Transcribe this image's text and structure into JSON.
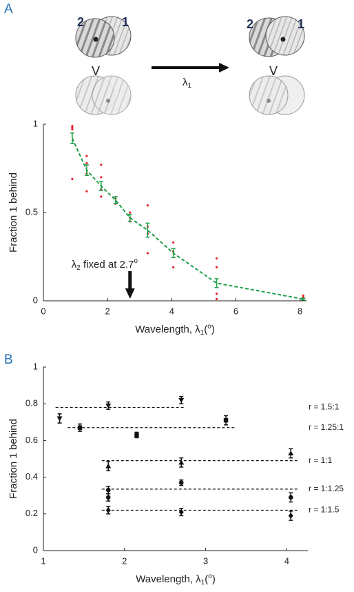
{
  "panels": [
    "A",
    "B"
  ],
  "illustration": {
    "labels": [
      "2",
      "1"
    ],
    "comparator": "V",
    "arrow_label": [
      "λ",
      "1"
    ]
  },
  "chart_data": [
    {
      "type": "line",
      "y_label": "Fraction 1 behind",
      "x_label": [
        "Wavelength, λ",
        "1",
        "(",
        "o",
        ")"
      ],
      "xlim": [
        0,
        8.2
      ],
      "ylim": [
        0,
        1
      ],
      "xticks": [
        0,
        2,
        4,
        6,
        8
      ],
      "yticks": [
        0,
        0.5,
        1
      ],
      "series": [
        {
          "color": "#e8202a",
          "style": "points",
          "x": [
            0.9,
            0.9,
            0.9,
            0.9,
            1.35,
            1.35,
            1.35,
            1.35,
            1.8,
            1.8,
            1.8,
            1.8,
            2.25,
            2.25,
            2.7,
            2.7,
            2.7,
            3.25,
            3.25,
            3.25,
            3.25,
            4.05,
            4.05,
            4.05,
            5.4,
            5.4,
            5.4,
            5.4,
            8.1,
            8.1
          ],
          "values": [
            0.99,
            0.98,
            0.97,
            0.69,
            0.82,
            0.78,
            0.72,
            0.62,
            0.77,
            0.7,
            0.63,
            0.59,
            0.58,
            0.55,
            0.5,
            0.47,
            0.45,
            0.54,
            0.42,
            0.38,
            0.27,
            0.33,
            0.28,
            0.19,
            0.24,
            0.19,
            0.04,
            0.01,
            0.03,
            0.02
          ]
        },
        {
          "color": "#1e9e4a",
          "style": "dashed",
          "x": [
            0.9,
            1.35,
            1.8,
            2.25,
            2.7,
            3.25,
            4.05,
            5.4,
            8.1
          ],
          "values": [
            0.92,
            0.74,
            0.65,
            0.57,
            0.47,
            0.4,
            0.27,
            0.1,
            0.01
          ],
          "errors": [
            0.03,
            0.03,
            0.025,
            0.02,
            0.02,
            0.04,
            0.025,
            0.025,
            0.005
          ]
        }
      ],
      "annotation": {
        "text": [
          "λ",
          "2",
          " fixed at 2.7",
          "o"
        ],
        "x": 2.7
      }
    },
    {
      "type": "scatter",
      "y_label": "Fraction 1 behind",
      "x_label": [
        "Wavelength, λ",
        "1",
        "(",
        "o",
        ")"
      ],
      "xlim": [
        1,
        4.26
      ],
      "ylim": [
        0,
        1
      ],
      "xticks": [
        1,
        2,
        3,
        4
      ],
      "yticks": [
        0,
        0.2,
        0.4,
        0.6,
        0.8,
        1
      ],
      "series": [
        {
          "name": "r = 1.5:1",
          "marker": "triangle-down",
          "x": [
            1.2,
            1.8,
            2.7
          ],
          "values": [
            0.72,
            0.79,
            0.82
          ],
          "errors": [
            0.025,
            0.02,
            0.02
          ],
          "fit_x": [
            1.15,
            2.75
          ],
          "fit_y": [
            0.78,
            0.78
          ]
        },
        {
          "name": "r = 1.25:1",
          "marker": "square",
          "x": [
            1.45,
            2.15,
            3.25
          ],
          "values": [
            0.67,
            0.63,
            0.71
          ],
          "errors": [
            0.02,
            0.015,
            0.025
          ],
          "fit_x": [
            1.3,
            3.38
          ],
          "fit_y": [
            0.67,
            0.67
          ]
        },
        {
          "name": "r = 1:1",
          "marker": "triangle-up",
          "x": [
            1.8,
            2.7,
            4.05
          ],
          "values": [
            0.46,
            0.48,
            0.53
          ],
          "errors": [
            0.025,
            0.025,
            0.025
          ],
          "fit_x": [
            1.72,
            4.15
          ],
          "fit_y": [
            0.49,
            0.49
          ]
        },
        {
          "name": "r = 1:1.25",
          "marker": "circle",
          "x": [
            1.8,
            1.8,
            2.7,
            4.05
          ],
          "values": [
            0.33,
            0.29,
            0.37,
            0.29
          ],
          "errors": [
            0.02,
            0.02,
            0.015,
            0.025
          ],
          "fit_x": [
            1.72,
            4.15
          ],
          "fit_y": [
            0.335,
            0.335
          ]
        },
        {
          "name": "r = 1:1.5",
          "marker": "diamond",
          "x": [
            1.8,
            2.7,
            4.05
          ],
          "values": [
            0.22,
            0.21,
            0.19
          ],
          "errors": [
            0.02,
            0.02,
            0.025
          ],
          "fit_x": [
            1.72,
            4.15
          ],
          "fit_y": [
            0.22,
            0.22
          ]
        }
      ]
    }
  ]
}
